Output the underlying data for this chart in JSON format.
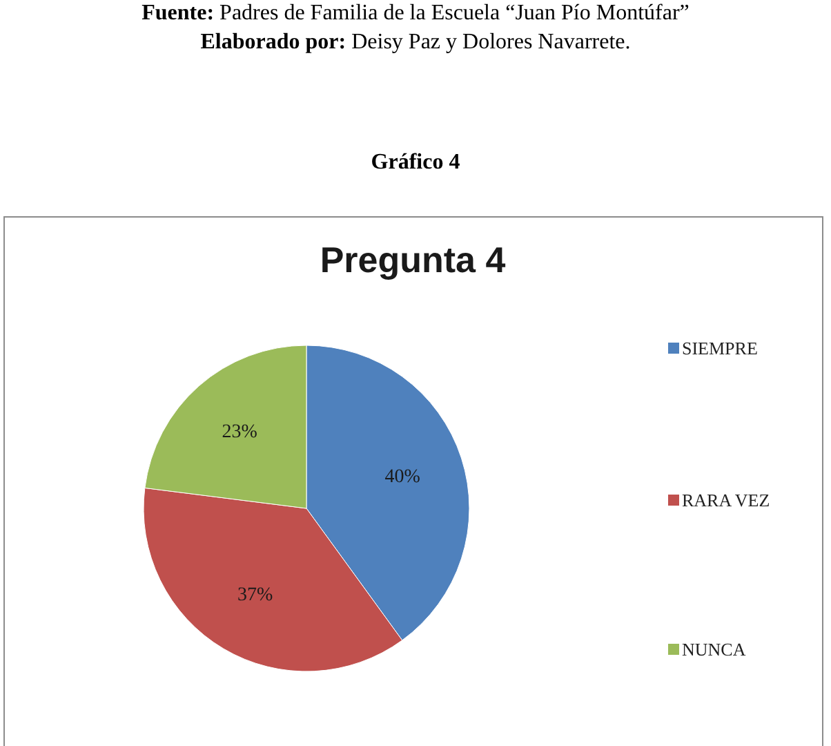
{
  "chart_data": {
    "type": "pie",
    "title": "Pregunta 4",
    "categories": [
      "SIEMPRE",
      "RARA VEZ",
      "NUNCA"
    ],
    "values": [
      40,
      37,
      23
    ],
    "colors": [
      "#4f81bd",
      "#c0504d",
      "#9bbb59"
    ],
    "value_labels": [
      "40%",
      "37%",
      "23%"
    ],
    "legend": "right",
    "annotations": [
      "Fuente: Padres de Familia de la Escuela “Juan Pío Montúfar”",
      "Elaborado por: Deisy Paz y Dolores Navarrete.",
      "Gráfico 4"
    ]
  }
}
